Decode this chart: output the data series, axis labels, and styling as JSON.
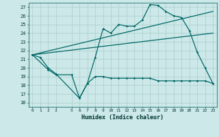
{
  "xlabel": "Humidex (Indice chaleur)",
  "bg_color": "#cce8e8",
  "grid_color": "#aacccc",
  "line_color": "#006666",
  "xlim": [
    -0.5,
    23.5
  ],
  "ylim": [
    15.5,
    27.5
  ],
  "xticks": [
    0,
    1,
    2,
    3,
    5,
    6,
    7,
    8,
    9,
    10,
    11,
    12,
    13,
    14,
    15,
    16,
    17,
    18,
    19,
    20,
    21,
    22,
    23
  ],
  "yticks": [
    16,
    17,
    18,
    19,
    20,
    21,
    22,
    23,
    24,
    25,
    26,
    27
  ],
  "line1_x": [
    0,
    1,
    2,
    3,
    6,
    7,
    8,
    9,
    10,
    11,
    12,
    13,
    14,
    15,
    16,
    17,
    18,
    19,
    20,
    21,
    22,
    23
  ],
  "line1_y": [
    21.5,
    21.2,
    20.0,
    19.3,
    16.5,
    18.2,
    21.2,
    24.5,
    24.0,
    25.0,
    24.8,
    24.8,
    25.5,
    27.3,
    27.2,
    26.5,
    26.0,
    25.8,
    24.3,
    21.8,
    20.0,
    18.2
  ],
  "line2_x": [
    0,
    2,
    3,
    5,
    6,
    7,
    8,
    9,
    10,
    11,
    12,
    13,
    14,
    15,
    16,
    17,
    18,
    19,
    20,
    21,
    22,
    23
  ],
  "line2_y": [
    21.5,
    19.8,
    19.2,
    19.2,
    16.5,
    18.2,
    19.0,
    19.0,
    18.8,
    18.8,
    18.8,
    18.8,
    18.8,
    18.8,
    18.5,
    18.5,
    18.5,
    18.5,
    18.5,
    18.5,
    18.5,
    18.2
  ],
  "line3_x": [
    0,
    23
  ],
  "line3_y": [
    21.5,
    24.0
  ],
  "line4_x": [
    0,
    23
  ],
  "line4_y": [
    21.5,
    26.5
  ]
}
